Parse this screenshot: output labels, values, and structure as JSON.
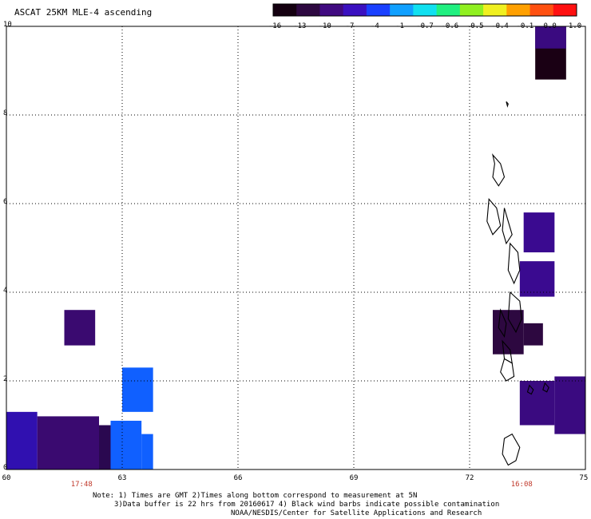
{
  "title": "ASCAT 25KM MLE-4 ascending",
  "colorbar": {
    "labels": [
      "-16",
      "-13",
      "-10",
      "-7",
      "-4",
      "-1",
      "-0.7",
      "-0.6",
      "-0.5",
      "-0.4",
      "-0.1",
      "0.0",
      "1.0"
    ],
    "colors": [
      "#140010",
      "#2d0840",
      "#400a80",
      "#3a10c0",
      "#1a40ff",
      "#10a0ff",
      "#10e0f0",
      "#20f080",
      "#90f020",
      "#f0f020",
      "#ffa000",
      "#ff5010",
      "#ff1010"
    ]
  },
  "map": {
    "lon_range": [
      60,
      75
    ],
    "lat_range": [
      0,
      10
    ],
    "x_ticks": [
      "60",
      "63",
      "66",
      "69",
      "72",
      "75"
    ],
    "y_ticks": [
      "0",
      "2",
      "4",
      "6",
      "8",
      "10"
    ],
    "grid": "dotted"
  },
  "pass_times": [
    {
      "label": "17:48",
      "lon": 61.95
    },
    {
      "label": "16:08",
      "lon": 73.35
    }
  ],
  "notes": {
    "line1": "Note: 1) Times are GMT 2)Times along bottom correspond to measurement at 5N",
    "line2": "3)Data buffer is 22 hrs from 20160617 4) Black wind barbs indicate possible contamination",
    "line3": "NOAA/NESDIS/Center for Satellite Applications and Research"
  },
  "data_cells": [
    {
      "lon": [
        61.5,
        62.3
      ],
      "lat": [
        2.8,
        3.6
      ],
      "color": "#3a0a70"
    },
    {
      "lon": [
        63.0,
        63.8
      ],
      "lat": [
        1.3,
        2.3
      ],
      "color": "#1060ff"
    },
    {
      "lon": [
        60.0,
        60.8
      ],
      "lat": [
        0.0,
        1.3
      ],
      "color": "#3010b0"
    },
    {
      "lon": [
        60.8,
        62.4
      ],
      "lat": [
        0.0,
        1.2
      ],
      "color": "#3a0a70"
    },
    {
      "lon": [
        62.4,
        63.2
      ],
      "lat": [
        0.0,
        1.0
      ],
      "color": "#2a0850"
    },
    {
      "lon": [
        62.7,
        63.5
      ],
      "lat": [
        0.0,
        1.1
      ],
      "color": "#1060ff"
    },
    {
      "lon": [
        63.5,
        63.8
      ],
      "lat": [
        0.0,
        0.8
      ],
      "color": "#1060ff"
    },
    {
      "lon": [
        73.7,
        74.5
      ],
      "lat": [
        8.8,
        10.0
      ],
      "color": "#1a0014"
    },
    {
      "lon": [
        73.7,
        74.5
      ],
      "lat": [
        9.5,
        10.0
      ],
      "color": "#3a0a80"
    },
    {
      "lon": [
        73.4,
        74.2
      ],
      "lat": [
        4.9,
        5.8
      ],
      "color": "#3a0a90"
    },
    {
      "lon": [
        73.3,
        74.2
      ],
      "lat": [
        3.9,
        4.7
      ],
      "color": "#3a0a90"
    },
    {
      "lon": [
        72.6,
        73.4
      ],
      "lat": [
        2.6,
        3.6
      ],
      "color": "#2d0840"
    },
    {
      "lon": [
        73.4,
        73.9
      ],
      "lat": [
        2.8,
        3.3
      ],
      "color": "#2d0840"
    },
    {
      "lon": [
        73.3,
        74.2
      ],
      "lat": [
        1.0,
        2.0
      ],
      "color": "#3a0a80"
    },
    {
      "lon": [
        74.2,
        75.0
      ],
      "lat": [
        0.8,
        2.1
      ],
      "color": "#3a0a80"
    }
  ]
}
